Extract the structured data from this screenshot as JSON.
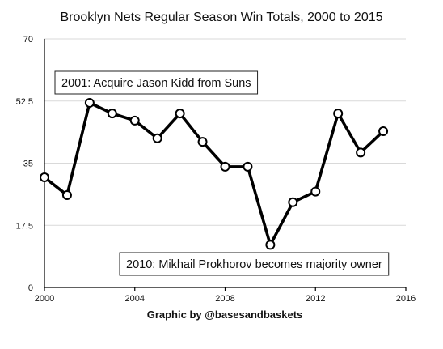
{
  "chart_data": {
    "type": "line",
    "title": "Brooklyn Nets Regular Season Win Totals, 2000 to 2015",
    "xlabel": "",
    "ylabel": "",
    "x": [
      2000,
      2001,
      2002,
      2003,
      2004,
      2005,
      2006,
      2007,
      2008,
      2009,
      2010,
      2011,
      2012,
      2013,
      2014,
      2015
    ],
    "series": [
      {
        "values": [
          31,
          26,
          52,
          49,
          47,
          42,
          49,
          41,
          34,
          34,
          12,
          24,
          27,
          49,
          38,
          44
        ]
      }
    ],
    "xlim": [
      2000,
      2016
    ],
    "ylim": [
      0,
      70
    ],
    "x_ticks": [
      "2000",
      "2004",
      "2008",
      "2012",
      "2016"
    ],
    "y_ticks": [
      "0",
      "17.5",
      "35",
      "52.5",
      "70"
    ],
    "grid": "horizontal",
    "line_color": "#000000",
    "marker": "open-circle",
    "annotations": [
      {
        "text": "2001: Acquire Jason Kidd from Suns",
        "position": "upper-left"
      },
      {
        "text": "2010: Mikhail Prokhorov becomes majority owner",
        "position": "lower-right"
      }
    ],
    "credit": "Graphic by @basesandbaskets"
  }
}
